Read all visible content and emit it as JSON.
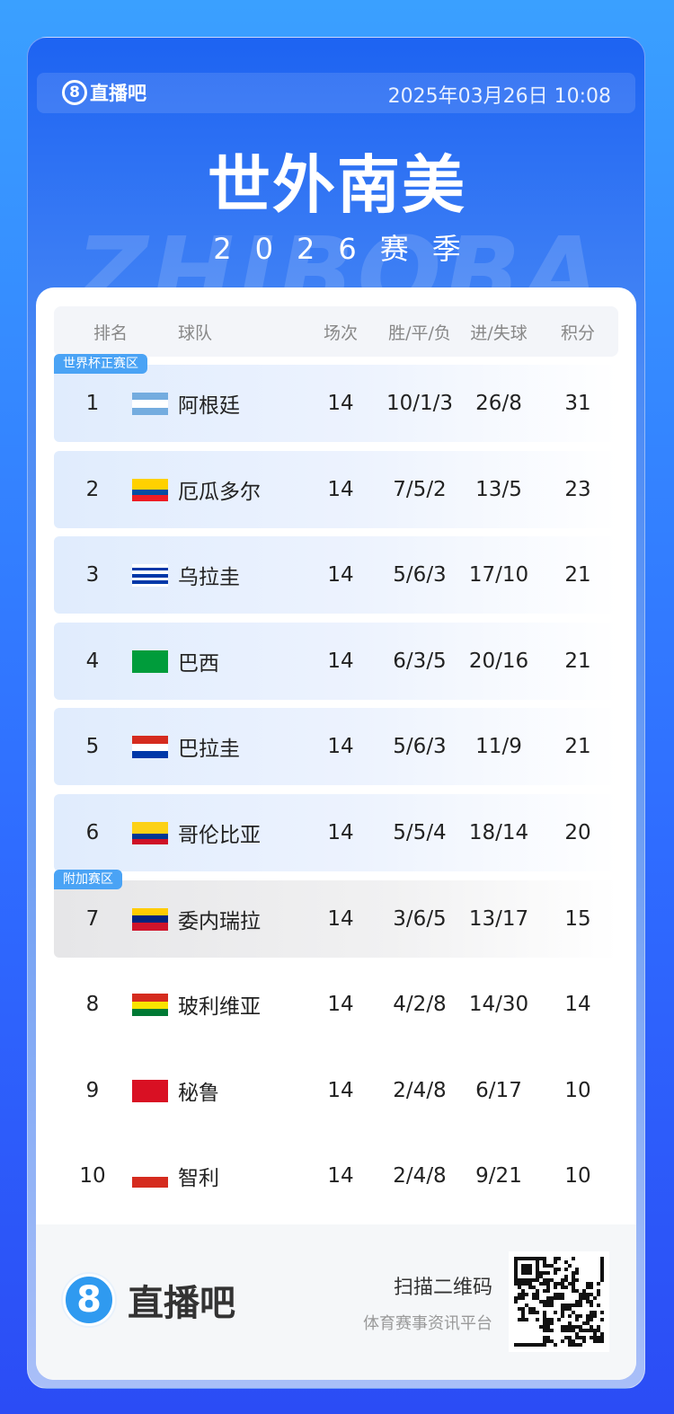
{
  "header": {
    "brand": "直播吧",
    "brand_icon": "8",
    "datetime": "2025年03月26日 10:08"
  },
  "title": "世外南美",
  "season": "2026赛季",
  "watermark": "ZHIBOBA",
  "table": {
    "columns": [
      "排名",
      "球队",
      "场次",
      "胜/平/负",
      "进/失球",
      "积分"
    ],
    "rows": [
      {
        "rank": "1",
        "team": "阿根廷",
        "played": "14",
        "wdl": "10/1/3",
        "goals": "26/8",
        "points": "31",
        "zone": "z1",
        "badge": "世界杯正赛区",
        "flag": [
          "#74acdf",
          "#ffffff",
          "#74acdf"
        ]
      },
      {
        "rank": "2",
        "team": "厄瓜多尔",
        "played": "14",
        "wdl": "7/5/2",
        "goals": "13/5",
        "points": "23",
        "zone": "z1",
        "flag": [
          "#ffd100",
          "#ffd100",
          "#034ea2",
          "#ed1c24"
        ]
      },
      {
        "rank": "3",
        "team": "乌拉圭",
        "played": "14",
        "wdl": "5/6/3",
        "goals": "17/10",
        "points": "21",
        "zone": "z1",
        "flag": [
          "#ffffff",
          "#0038a8",
          "#ffffff",
          "#0038a8",
          "#ffffff",
          "#0038a8",
          "#ffffff"
        ]
      },
      {
        "rank": "4",
        "team": "巴西",
        "played": "14",
        "wdl": "6/3/5",
        "goals": "20/16",
        "points": "21",
        "zone": "z1",
        "flag": [
          "#009c3b"
        ]
      },
      {
        "rank": "5",
        "team": "巴拉圭",
        "played": "14",
        "wdl": "5/6/3",
        "goals": "11/9",
        "points": "21",
        "zone": "z1",
        "flag": [
          "#d52b1e",
          "#ffffff",
          "#0038a8"
        ]
      },
      {
        "rank": "6",
        "team": "哥伦比亚",
        "played": "14",
        "wdl": "5/5/4",
        "goals": "18/14",
        "points": "20",
        "zone": "z1",
        "flag": [
          "#fcd116",
          "#fcd116",
          "#003893",
          "#ce1126"
        ]
      },
      {
        "rank": "7",
        "team": "委内瑞拉",
        "played": "14",
        "wdl": "3/6/5",
        "goals": "13/17",
        "points": "15",
        "zone": "z2",
        "badge": "附加赛区",
        "flag": [
          "#ffcc00",
          "#00247d",
          "#cf142b"
        ]
      },
      {
        "rank": "8",
        "team": "玻利维亚",
        "played": "14",
        "wdl": "4/2/8",
        "goals": "14/30",
        "points": "14",
        "zone": "",
        "flag": [
          "#d52b1e",
          "#f9e300",
          "#007934"
        ]
      },
      {
        "rank": "9",
        "team": "秘鲁",
        "played": "14",
        "wdl": "2/4/8",
        "goals": "6/17",
        "points": "10",
        "zone": "",
        "flag": [
          "#d91023"
        ]
      },
      {
        "rank": "10",
        "team": "智利",
        "played": "14",
        "wdl": "2/4/8",
        "goals": "9/21",
        "points": "10",
        "zone": "",
        "flag": [
          "#ffffff",
          "#d52b1e"
        ]
      }
    ]
  },
  "footer": {
    "brand": "直播吧",
    "brand_icon": "8",
    "scan": "扫描二维码",
    "tagline": "体育赛事资讯平台"
  }
}
